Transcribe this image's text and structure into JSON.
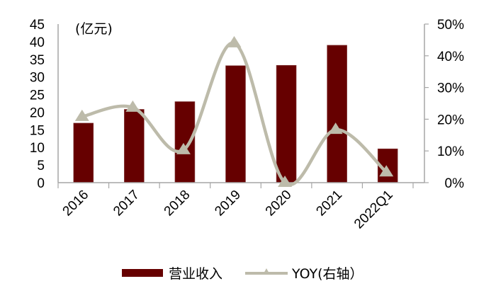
{
  "chart_data": {
    "type": "bar+line",
    "title": "",
    "categories": [
      "2016",
      "2017",
      "2018",
      "2019",
      "2020",
      "2021",
      "2022Q1"
    ],
    "series": [
      {
        "name": "营业收入",
        "type": "bar",
        "axis": "left",
        "color": "#660000",
        "values": [
          16.9,
          20.8,
          23.0,
          33.2,
          33.3,
          39.0,
          9.6
        ]
      },
      {
        "name": "YOY(右轴）",
        "type": "line",
        "axis": "right",
        "color": "#BDBBAA",
        "marker": "triangle",
        "smooth": true,
        "values": [
          20.8,
          23.7,
          10.3,
          44.0,
          0.0,
          16.7,
          3.3
        ]
      }
    ],
    "left_axis": {
      "unit_label": "(亿元)",
      "ylim": [
        0,
        45
      ],
      "ticks": [
        "0",
        "5",
        "10",
        "15",
        "20",
        "25",
        "30",
        "35",
        "40",
        "45"
      ]
    },
    "right_axis": {
      "ylim": [
        0,
        50
      ],
      "ticks": [
        "0%",
        "10%",
        "20%",
        "30%",
        "40%",
        "50%"
      ]
    },
    "xlabel": "",
    "ylabel": "(亿元)",
    "grid": false,
    "legend_position": "bottom"
  },
  "legend": {
    "bar_label": "营业收入",
    "line_label": "YOY(右轴）"
  }
}
